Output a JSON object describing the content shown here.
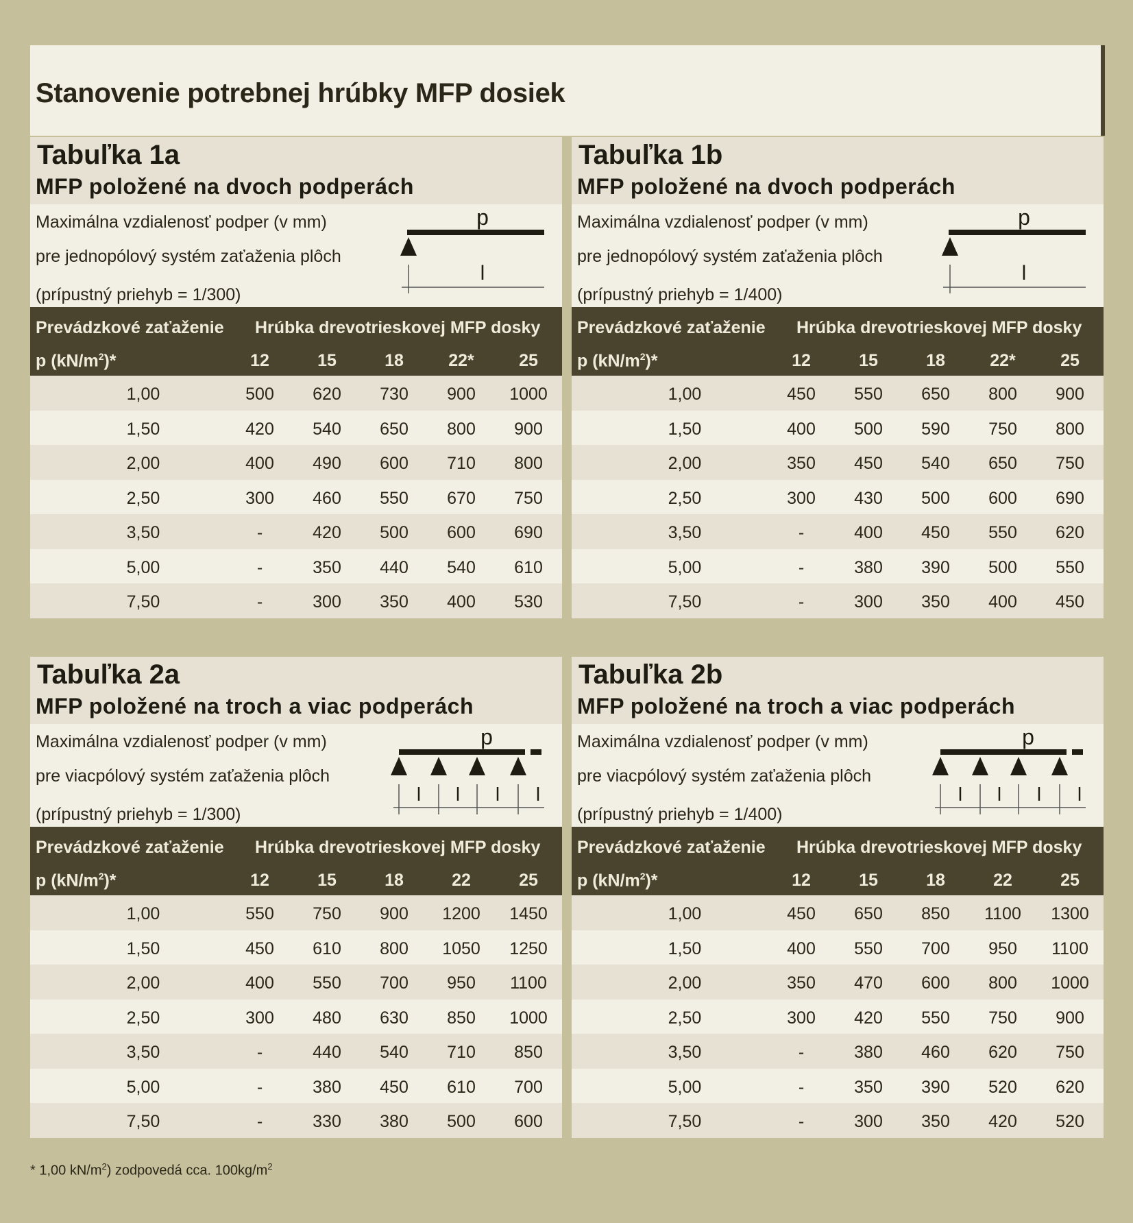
{
  "page_title": "Stanovenie potrebnej hrúbky MFP dosiek",
  "header_labels": {
    "load": "Prevádzkové zaťaženie",
    "thickness": "Hrúbka drevotrieskovej MFP dosky",
    "unit_prefix": "p (kN/m",
    "unit_sup": "2",
    "unit_suffix": ")*"
  },
  "diagram_labels": {
    "load": "p",
    "span": "l"
  },
  "tables": [
    {
      "id": "1a",
      "title": "Tabuľka 1a",
      "subtitle": "MFP položené na dvoch podperách",
      "desc": [
        "Maximálna vzdialenosť podper (v mm)",
        "pre jednopólový systém zaťaženia plôch",
        "(prípustný priehyb = 1/300)"
      ],
      "columns": [
        "12",
        "15",
        "18",
        "22*",
        "25"
      ],
      "rows": [
        {
          "load": "1,00",
          "values": [
            "500",
            "620",
            "730",
            "900",
            "1000"
          ]
        },
        {
          "load": "1,50",
          "values": [
            "420",
            "540",
            "650",
            "800",
            "900"
          ]
        },
        {
          "load": "2,00",
          "values": [
            "400",
            "490",
            "600",
            "710",
            "800"
          ]
        },
        {
          "load": "2,50",
          "values": [
            "300",
            "460",
            "550",
            "670",
            "750"
          ]
        },
        {
          "load": "3,50",
          "values": [
            "-",
            "420",
            "500",
            "600",
            "690"
          ]
        },
        {
          "load": "5,00",
          "values": [
            "-",
            "350",
            "440",
            "540",
            "610"
          ]
        },
        {
          "load": "7,50",
          "values": [
            "-",
            "300",
            "350",
            "400",
            "530"
          ]
        }
      ]
    },
    {
      "id": "1b",
      "title": "Tabuľka 1b",
      "subtitle": "MFP položené na dvoch podperách",
      "desc": [
        "Maximálna vzdialenosť podper (v mm)",
        "pre jednopólový systém zaťaženia plôch",
        "(prípustný priehyb = 1/400)"
      ],
      "columns": [
        "12",
        "15",
        "18",
        "22*",
        "25"
      ],
      "rows": [
        {
          "load": "1,00",
          "values": [
            "450",
            "550",
            "650",
            "800",
            "900"
          ]
        },
        {
          "load": "1,50",
          "values": [
            "400",
            "500",
            "590",
            "750",
            "800"
          ]
        },
        {
          "load": "2,00",
          "values": [
            "350",
            "450",
            "540",
            "650",
            "750"
          ]
        },
        {
          "load": "2,50",
          "values": [
            "300",
            "430",
            "500",
            "600",
            "690"
          ]
        },
        {
          "load": "3,50",
          "values": [
            "-",
            "400",
            "450",
            "550",
            "620"
          ]
        },
        {
          "load": "5,00",
          "values": [
            "-",
            "380",
            "390",
            "500",
            "550"
          ]
        },
        {
          "load": "7,50",
          "values": [
            "-",
            "300",
            "350",
            "400",
            "450"
          ]
        }
      ]
    },
    {
      "id": "2a",
      "title": "Tabuľka 2a",
      "subtitle": "MFP položené na troch a viac podperách",
      "desc": [
        "Maximálna vzdialenosť podper (v mm)",
        "pre viacpólový systém zaťaženia plôch",
        "(prípustný priehyb = 1/300)"
      ],
      "columns": [
        "12",
        "15",
        "18",
        "22",
        "25"
      ],
      "rows": [
        {
          "load": "1,00",
          "values": [
            "550",
            "750",
            "900",
            "1200",
            "1450"
          ]
        },
        {
          "load": "1,50",
          "values": [
            "450",
            "610",
            "800",
            "1050",
            "1250"
          ]
        },
        {
          "load": "2,00",
          "values": [
            "400",
            "550",
            "700",
            "950",
            "1100"
          ]
        },
        {
          "load": "2,50",
          "values": [
            "300",
            "480",
            "630",
            "850",
            "1000"
          ]
        },
        {
          "load": "3,50",
          "values": [
            "-",
            "440",
            "540",
            "710",
            "850"
          ]
        },
        {
          "load": "5,00",
          "values": [
            "-",
            "380",
            "450",
            "610",
            "700"
          ]
        },
        {
          "load": "7,50",
          "values": [
            "-",
            "330",
            "380",
            "500",
            "600"
          ]
        }
      ]
    },
    {
      "id": "2b",
      "title": "Tabuľka 2b",
      "subtitle": "MFP položené na troch a viac podperách",
      "desc": [
        "Maximálna vzdialenosť podper (v mm)",
        "pre viacpólový systém zaťaženia plôch",
        "(prípustný priehyb = 1/400)"
      ],
      "columns": [
        "12",
        "15",
        "18",
        "22",
        "25"
      ],
      "rows": [
        {
          "load": "1,00",
          "values": [
            "450",
            "650",
            "850",
            "1100",
            "1300"
          ]
        },
        {
          "load": "1,50",
          "values": [
            "400",
            "550",
            "700",
            "950",
            "1100"
          ]
        },
        {
          "load": "2,00",
          "values": [
            "350",
            "470",
            "600",
            "800",
            "1000"
          ]
        },
        {
          "load": "2,50",
          "values": [
            "300",
            "420",
            "550",
            "750",
            "900"
          ]
        },
        {
          "load": "3,50",
          "values": [
            "-",
            "380",
            "460",
            "620",
            "750"
          ]
        },
        {
          "load": "5,00",
          "values": [
            "-",
            "350",
            "390",
            "520",
            "620"
          ]
        },
        {
          "load": "7,50",
          "values": [
            "-",
            "300",
            "350",
            "420",
            "520"
          ]
        }
      ]
    }
  ],
  "footnote": {
    "prefix": "* 1,00 kN/m",
    "sup1": "2",
    "middle": ") zodpovedá cca. 100kg/m",
    "sup2": "2"
  }
}
